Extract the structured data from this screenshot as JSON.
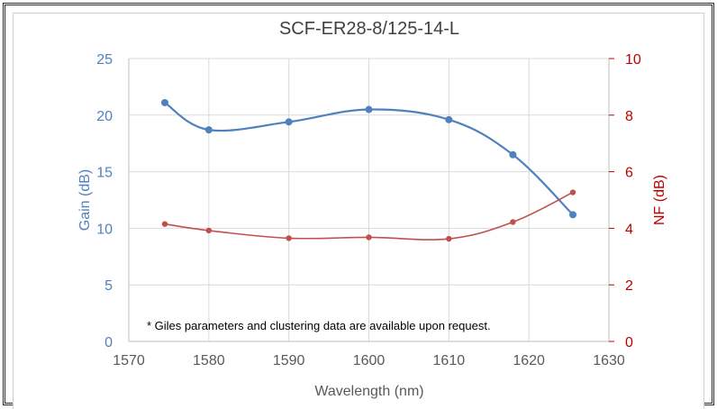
{
  "chart_data": {
    "type": "line",
    "title": "SCF-ER28-8/125-14-L",
    "xlabel": "Wavelength (nm)",
    "ylabel": "Gain (dB)",
    "y2label": "NF (dB)",
    "xlim": [
      1570,
      1630
    ],
    "ylim": [
      0,
      25
    ],
    "y2lim": [
      0,
      10
    ],
    "x_ticks": [
      "1570",
      "1580",
      "1590",
      "1600",
      "1610",
      "1620",
      "1630"
    ],
    "y_ticks": [
      "0",
      "5",
      "10",
      "15",
      "20",
      "25"
    ],
    "y2_ticks": [
      "0",
      "2",
      "4",
      "6",
      "8",
      "10"
    ],
    "grid": "horizontal and vertical",
    "series": [
      {
        "axis": "left",
        "color": "#4f81bd",
        "x": [
          1574.5,
          1580,
          1590,
          1600,
          1610,
          1618,
          1625.5
        ],
        "values": [
          21.1,
          18.7,
          19.4,
          20.5,
          19.6,
          16.5,
          11.2
        ]
      },
      {
        "axis": "right",
        "color": "#c0504d",
        "x": [
          1574.5,
          1580,
          1590,
          1600,
          1610,
          1618,
          1625.5
        ],
        "values": [
          4.15,
          3.92,
          3.65,
          3.68,
          3.63,
          4.22,
          5.27
        ]
      }
    ],
    "annotation": "* Giles parameters and clustering data are available upon request."
  }
}
